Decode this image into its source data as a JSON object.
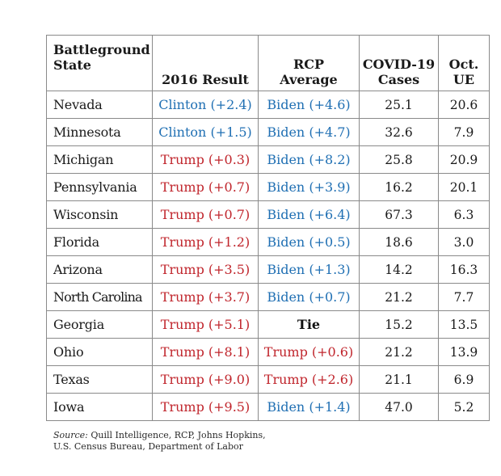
{
  "header": {
    "state_line1": "Battleground",
    "state_line2": "State",
    "result2016": "2016 Result",
    "rcp_line1": "RCP",
    "rcp_line2": "Average",
    "covid_line1": "COVID-19",
    "covid_line2": "Cases",
    "ue_line1": "Oct.",
    "ue_line2": "UE"
  },
  "colors": {
    "blue": "#1f6fb3",
    "red": "#c0252c",
    "black": "#111111"
  },
  "rows": [
    {
      "state": "Nevada",
      "result2016": "Clinton (+2.4)",
      "r2016_party": "blue",
      "rcp": "Biden (+4.6)",
      "rcp_party": "blue",
      "covid": "25.1",
      "ue": "20.6"
    },
    {
      "state": "Minnesota",
      "result2016": "Clinton (+1.5)",
      "r2016_party": "blue",
      "rcp": "Biden (+4.7)",
      "rcp_party": "blue",
      "covid": "32.6",
      "ue": "7.9"
    },
    {
      "state": "Michigan",
      "result2016": "Trump (+0.3)",
      "r2016_party": "red",
      "rcp": "Biden (+8.2)",
      "rcp_party": "blue",
      "covid": "25.8",
      "ue": "20.9"
    },
    {
      "state": "Pennsylvania",
      "result2016": "Trump (+0.7)",
      "r2016_party": "red",
      "rcp": "Biden (+3.9)",
      "rcp_party": "blue",
      "covid": "16.2",
      "ue": "20.1"
    },
    {
      "state": "Wisconsin",
      "result2016": "Trump (+0.7)",
      "r2016_party": "red",
      "rcp": "Biden (+6.4)",
      "rcp_party": "blue",
      "covid": "67.3",
      "ue": "6.3"
    },
    {
      "state": "Florida",
      "result2016": "Trump (+1.2)",
      "r2016_party": "red",
      "rcp": "Biden (+0.5)",
      "rcp_party": "blue",
      "covid": "18.6",
      "ue": "3.0"
    },
    {
      "state": "Arizona",
      "result2016": "Trump (+3.5)",
      "r2016_party": "red",
      "rcp": "Biden (+1.3)",
      "rcp_party": "blue",
      "covid": "14.2",
      "ue": "16.3"
    },
    {
      "state": "North Carolina",
      "result2016": "Trump (+3.7)",
      "r2016_party": "red",
      "rcp": "Biden (+0.7)",
      "rcp_party": "blue",
      "covid": "21.2",
      "ue": "7.7"
    },
    {
      "state": "Georgia",
      "result2016": "Trump (+5.1)",
      "r2016_party": "red",
      "rcp": "Tie",
      "rcp_party": "black",
      "covid": "15.2",
      "ue": "13.5"
    },
    {
      "state": "Ohio",
      "result2016": "Trump (+8.1)",
      "r2016_party": "red",
      "rcp": "Trump (+0.6)",
      "rcp_party": "red",
      "covid": "21.2",
      "ue": "13.9"
    },
    {
      "state": "Texas",
      "result2016": "Trump (+9.0)",
      "r2016_party": "red",
      "rcp": "Trump (+2.6)",
      "rcp_party": "red",
      "covid": "21.1",
      "ue": "6.9"
    },
    {
      "state": "Iowa",
      "result2016": "Trump (+9.5)",
      "r2016_party": "red",
      "rcp": "Biden (+1.4)",
      "rcp_party": "blue",
      "covid": "47.0",
      "ue": "5.2"
    }
  ],
  "source": {
    "label": "Source:",
    "line1": "Quill Intelligence, RCP, Johns Hopkins,",
    "line2": "U.S. Census Bureau, Department of Labor"
  }
}
